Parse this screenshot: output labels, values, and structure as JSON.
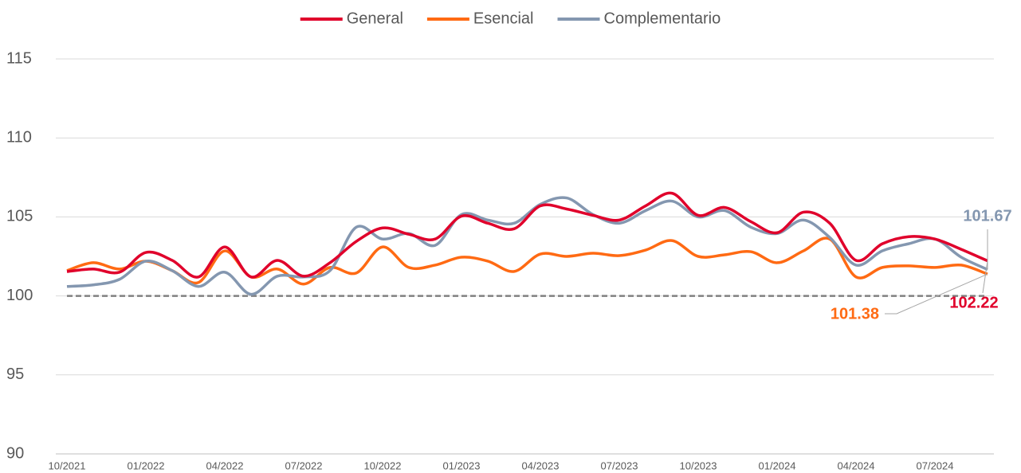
{
  "chart_data": {
    "type": "line",
    "categories": [
      "10/2021",
      null,
      null,
      "01/2022",
      null,
      null,
      "04/2022",
      null,
      null,
      "07/2022",
      null,
      null,
      "10/2022",
      null,
      null,
      "01/2023",
      null,
      null,
      "04/2023",
      null,
      null,
      "07/2023",
      null,
      null,
      "10/2023",
      null,
      null,
      "01/2024",
      null,
      null,
      "04/2024",
      null,
      null,
      "07/2024",
      null,
      null
    ],
    "series": [
      {
        "name": "General",
        "color": "#e0002b",
        "values": [
          101.54,
          101.7,
          101.5,
          102.75,
          102.25,
          101.2,
          103.1,
          101.2,
          102.25,
          101.25,
          102.1,
          103.45,
          104.3,
          103.9,
          103.6,
          105.05,
          104.6,
          104.25,
          105.7,
          105.5,
          105.1,
          104.8,
          105.7,
          106.5,
          105.1,
          105.6,
          104.7,
          104.0,
          105.3,
          104.6,
          102.25,
          103.3,
          103.75,
          103.6,
          102.95,
          102.22
        ]
      },
      {
        "name": "Esencial",
        "color": "#ff6a13",
        "values": [
          101.6,
          102.1,
          101.7,
          102.2,
          101.6,
          100.85,
          102.85,
          101.2,
          101.7,
          100.75,
          101.8,
          101.45,
          103.1,
          101.8,
          101.95,
          102.45,
          102.2,
          101.55,
          102.65,
          102.5,
          102.7,
          102.55,
          102.9,
          103.5,
          102.5,
          102.6,
          102.8,
          102.1,
          102.85,
          103.6,
          101.2,
          101.8,
          101.9,
          101.8,
          101.95,
          101.38
        ]
      },
      {
        "name": "Complementario",
        "color": "#8497b0",
        "values": [
          100.6,
          100.7,
          101.05,
          102.2,
          101.6,
          100.6,
          101.5,
          100.1,
          101.25,
          101.2,
          101.6,
          104.35,
          103.6,
          103.95,
          103.2,
          105.15,
          104.8,
          104.6,
          105.8,
          106.2,
          105.15,
          104.6,
          105.4,
          106.0,
          105.0,
          105.4,
          104.35,
          103.95,
          104.8,
          103.7,
          101.95,
          102.85,
          103.3,
          103.6,
          102.45,
          101.67
        ]
      }
    ],
    "reference_line": 100,
    "ylim": [
      90,
      115
    ],
    "yticks": [
      90,
      95,
      100,
      105,
      110,
      115
    ],
    "grid": true,
    "legend": "top"
  }
}
